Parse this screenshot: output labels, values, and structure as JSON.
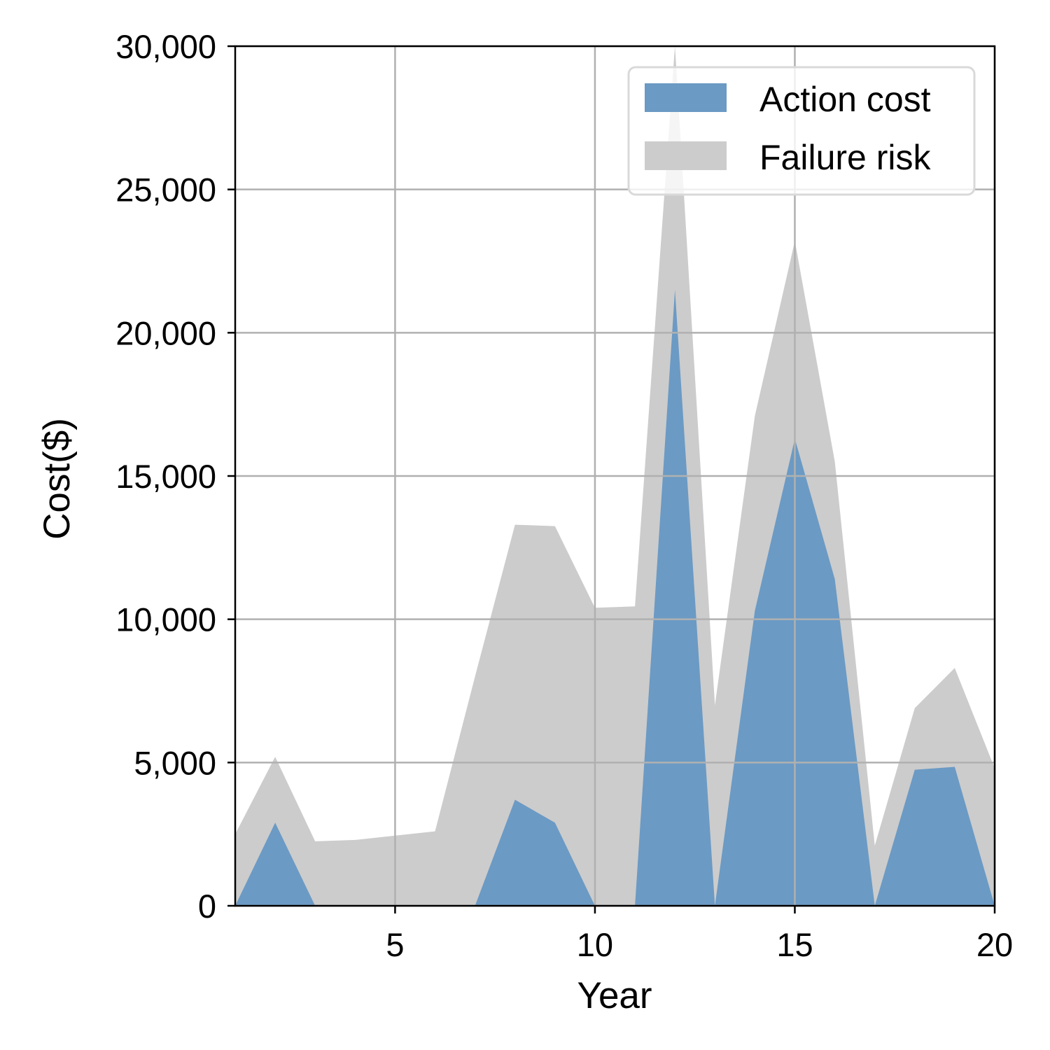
{
  "chart_data": {
    "type": "area",
    "title": "",
    "xlabel": "Year",
    "ylabel": "Cost($)",
    "xlim": [
      1,
      20
    ],
    "ylim": [
      0,
      30000
    ],
    "grid": true,
    "legend_position": "top-right",
    "x": [
      1,
      2,
      3,
      4,
      5,
      6,
      7,
      8,
      9,
      10,
      11,
      12,
      13,
      14,
      15,
      16,
      17,
      18,
      19,
      20
    ],
    "x_ticks": [
      5,
      10,
      15,
      20
    ],
    "x_tick_labels": [
      "5",
      "10",
      "15",
      "20"
    ],
    "y_ticks": [
      0,
      5000,
      10000,
      15000,
      20000,
      25000,
      30000
    ],
    "y_tick_labels": [
      "0",
      "5,000",
      "10,000",
      "15,000",
      "20,000",
      "25,000",
      "30,000"
    ],
    "series": [
      {
        "name": "Failure risk",
        "color": "#cccccc",
        "values": [
          2500,
          5200,
          2250,
          2300,
          2450,
          2600,
          8000,
          13300,
          13250,
          10400,
          10450,
          30000,
          7000,
          17100,
          23200,
          15500,
          2100,
          6900,
          8300,
          4800
        ]
      },
      {
        "name": "Action cost",
        "color": "#6b9ac4",
        "values": [
          0,
          2900,
          0,
          0,
          0,
          0,
          0,
          3700,
          2900,
          0,
          0,
          21500,
          0,
          10300,
          16300,
          11400,
          0,
          4750,
          4850,
          0
        ]
      }
    ],
    "legend": [
      {
        "label": "Action cost",
        "color": "#6b9ac4"
      },
      {
        "label": "Failure risk",
        "color": "#cccccc"
      }
    ]
  }
}
